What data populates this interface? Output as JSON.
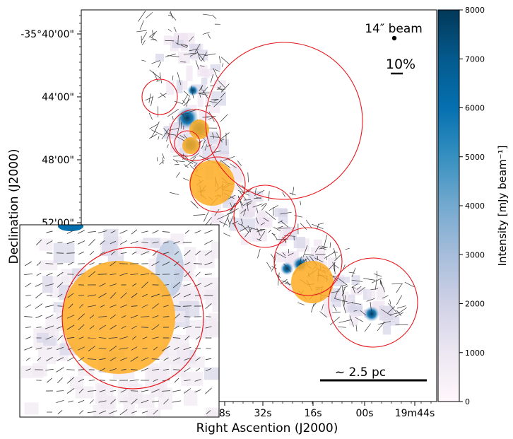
{
  "chart_data": {
    "type": "heatmap",
    "title": "",
    "xlabel": "Right Ascention (J2000)",
    "ylabel": "Declination (J2000)",
    "x_tick_labels": [
      "8s",
      "32s",
      "16s",
      "00s",
      "19m44s"
    ],
    "y_tick_labels": [
      "-35°40'00\"",
      "44'00\"",
      "48'00\"",
      "52'00\""
    ],
    "colorbar": {
      "label": "Intensity [mJy beam⁻¹]",
      "min": 0,
      "max": 8000,
      "ticks": [
        0,
        1000,
        2000,
        3000,
        4000,
        5000,
        6000,
        7000,
        8000
      ],
      "colormap": "PuBu"
    },
    "annotations": {
      "beam_label": "14″ beam",
      "polarization_scale_label": "10%",
      "scale_bar_label": "~ 2.5 pc"
    },
    "colors": {
      "circle": "#e8151b",
      "clump_fill": "#ffad22",
      "vectors": "#333333"
    },
    "inset": {
      "shown": true,
      "note_free": true
    }
  }
}
